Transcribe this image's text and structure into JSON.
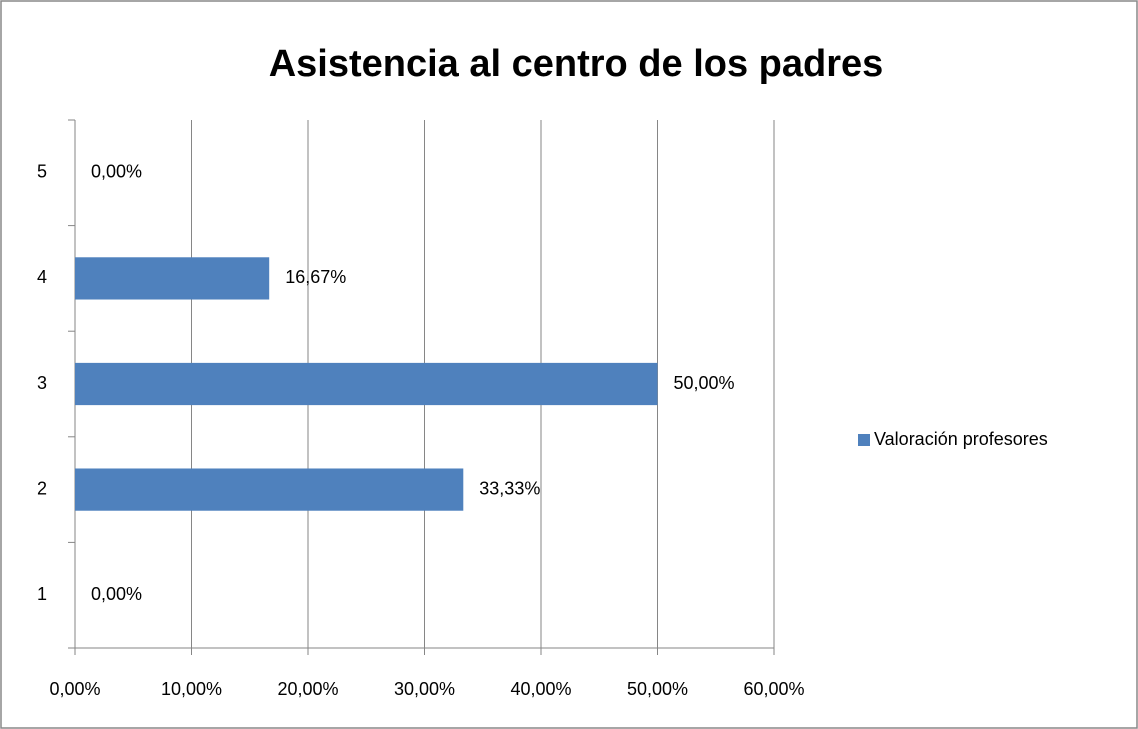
{
  "chart_data": {
    "type": "bar",
    "orientation": "horizontal",
    "title": "Asistencia al centro de los padres",
    "categories": [
      "1",
      "2",
      "3",
      "4",
      "5"
    ],
    "series": [
      {
        "name": "Valoración profesores",
        "color": "#4f81bd",
        "values": [
          0,
          33.33,
          50,
          16.67,
          0
        ],
        "value_labels": [
          "0,00%",
          "33,33%",
          "50,00%",
          "16,67%",
          "0,00%"
        ]
      }
    ],
    "xlim": [
      0,
      60
    ],
    "xticks": [
      {
        "value": 0,
        "label": "0,00%"
      },
      {
        "value": 10,
        "label": "10,00%"
      },
      {
        "value": 20,
        "label": "20,00%"
      },
      {
        "value": 30,
        "label": "30,00%"
      },
      {
        "value": 40,
        "label": "40,00%"
      },
      {
        "value": 50,
        "label": "50,00%"
      },
      {
        "value": 60,
        "label": "60,00%"
      }
    ],
    "grid": true,
    "legend": "right"
  }
}
